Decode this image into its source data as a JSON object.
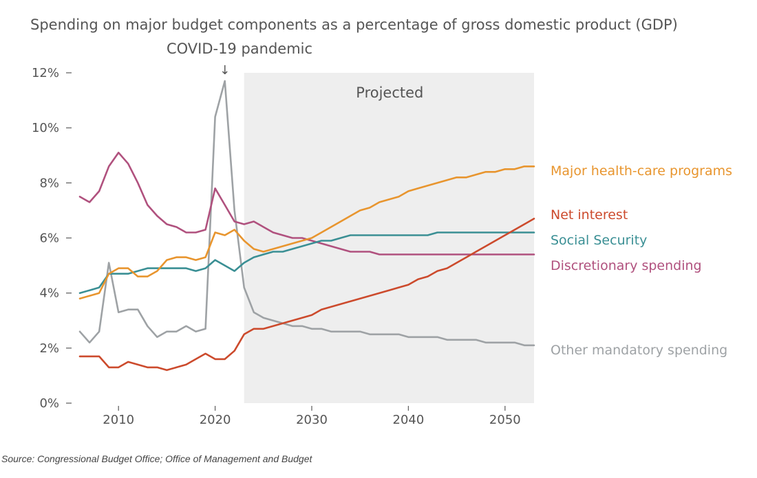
{
  "chart_data": {
    "type": "line",
    "title": "Spending on major budget components as a percentage of gross domestic product (GDP)",
    "xlabel": "",
    "ylabel": "",
    "xlim": [
      2005,
      2054
    ],
    "ylim": [
      0,
      12
    ],
    "x_ticks": [
      2010,
      2020,
      2030,
      2040,
      2050
    ],
    "x_tick_labels": [
      "2010",
      "2020",
      "2030",
      "2040",
      "2050"
    ],
    "y_ticks": [
      0,
      2,
      4,
      6,
      8,
      10,
      12
    ],
    "y_tick_labels": [
      "0%",
      "2%",
      "4%",
      "6%",
      "8%",
      "10%",
      "12%"
    ],
    "projected_region": {
      "label": "Projected",
      "x_start": 2023,
      "x_end": 2053
    },
    "annotation": {
      "text": "COVID-19 pandemic",
      "arrow": "↓",
      "x": 2021
    },
    "series": [
      {
        "name": "Major health-care programs",
        "color": "#e8952e",
        "x": [
          2006,
          2007,
          2008,
          2009,
          2010,
          2011,
          2012,
          2013,
          2014,
          2015,
          2016,
          2017,
          2018,
          2019,
          2020,
          2021,
          2022,
          2023,
          2024,
          2025,
          2026,
          2027,
          2028,
          2029,
          2030,
          2031,
          2032,
          2033,
          2034,
          2035,
          2036,
          2037,
          2038,
          2039,
          2040,
          2041,
          2042,
          2043,
          2044,
          2045,
          2046,
          2047,
          2048,
          2049,
          2050,
          2051,
          2052,
          2053
        ],
        "values": [
          3.8,
          3.9,
          4.0,
          4.7,
          4.9,
          4.9,
          4.6,
          4.6,
          4.8,
          5.2,
          5.3,
          5.3,
          5.2,
          5.3,
          6.2,
          6.1,
          6.3,
          5.9,
          5.6,
          5.5,
          5.6,
          5.7,
          5.8,
          5.9,
          6.0,
          6.2,
          6.4,
          6.6,
          6.8,
          7.0,
          7.1,
          7.3,
          7.4,
          7.5,
          7.7,
          7.8,
          7.9,
          8.0,
          8.1,
          8.2,
          8.2,
          8.3,
          8.4,
          8.4,
          8.5,
          8.5,
          8.6,
          8.6
        ]
      },
      {
        "name": "Net interest",
        "color": "#cc4a2c",
        "x": [
          2006,
          2007,
          2008,
          2009,
          2010,
          2011,
          2012,
          2013,
          2014,
          2015,
          2016,
          2017,
          2018,
          2019,
          2020,
          2021,
          2022,
          2023,
          2024,
          2025,
          2026,
          2027,
          2028,
          2029,
          2030,
          2031,
          2032,
          2033,
          2034,
          2035,
          2036,
          2037,
          2038,
          2039,
          2040,
          2041,
          2042,
          2043,
          2044,
          2045,
          2046,
          2047,
          2048,
          2049,
          2050,
          2051,
          2052,
          2053
        ],
        "values": [
          1.7,
          1.7,
          1.7,
          1.3,
          1.3,
          1.5,
          1.4,
          1.3,
          1.3,
          1.2,
          1.3,
          1.4,
          1.6,
          1.8,
          1.6,
          1.6,
          1.9,
          2.5,
          2.7,
          2.7,
          2.8,
          2.9,
          3.0,
          3.1,
          3.2,
          3.4,
          3.5,
          3.6,
          3.7,
          3.8,
          3.9,
          4.0,
          4.1,
          4.2,
          4.3,
          4.5,
          4.6,
          4.8,
          4.9,
          5.1,
          5.3,
          5.5,
          5.7,
          5.9,
          6.1,
          6.3,
          6.5,
          6.7
        ]
      },
      {
        "name": "Social Security",
        "color": "#3a8f94",
        "x": [
          2006,
          2007,
          2008,
          2009,
          2010,
          2011,
          2012,
          2013,
          2014,
          2015,
          2016,
          2017,
          2018,
          2019,
          2020,
          2021,
          2022,
          2023,
          2024,
          2025,
          2026,
          2027,
          2028,
          2029,
          2030,
          2031,
          2032,
          2033,
          2034,
          2035,
          2036,
          2037,
          2038,
          2039,
          2040,
          2041,
          2042,
          2043,
          2044,
          2045,
          2046,
          2047,
          2048,
          2049,
          2050,
          2051,
          2052,
          2053
        ],
        "values": [
          4.0,
          4.1,
          4.2,
          4.7,
          4.7,
          4.7,
          4.8,
          4.9,
          4.9,
          4.9,
          4.9,
          4.9,
          4.8,
          4.9,
          5.2,
          5.0,
          4.8,
          5.1,
          5.3,
          5.4,
          5.5,
          5.5,
          5.6,
          5.7,
          5.8,
          5.9,
          5.9,
          6.0,
          6.1,
          6.1,
          6.1,
          6.1,
          6.1,
          6.1,
          6.1,
          6.1,
          6.1,
          6.2,
          6.2,
          6.2,
          6.2,
          6.2,
          6.2,
          6.2,
          6.2,
          6.2,
          6.2,
          6.2
        ]
      },
      {
        "name": "Discretionary spending",
        "color": "#b0517e",
        "x": [
          2006,
          2007,
          2008,
          2009,
          2010,
          2011,
          2012,
          2013,
          2014,
          2015,
          2016,
          2017,
          2018,
          2019,
          2020,
          2021,
          2022,
          2023,
          2024,
          2025,
          2026,
          2027,
          2028,
          2029,
          2030,
          2031,
          2032,
          2033,
          2034,
          2035,
          2036,
          2037,
          2038,
          2039,
          2040,
          2041,
          2042,
          2043,
          2044,
          2045,
          2046,
          2047,
          2048,
          2049,
          2050,
          2051,
          2052,
          2053
        ],
        "values": [
          7.5,
          7.3,
          7.7,
          8.6,
          9.1,
          8.7,
          8.0,
          7.2,
          6.8,
          6.5,
          6.4,
          6.2,
          6.2,
          6.3,
          7.8,
          7.2,
          6.6,
          6.5,
          6.6,
          6.4,
          6.2,
          6.1,
          6.0,
          6.0,
          5.9,
          5.8,
          5.7,
          5.6,
          5.5,
          5.5,
          5.5,
          5.4,
          5.4,
          5.4,
          5.4,
          5.4,
          5.4,
          5.4,
          5.4,
          5.4,
          5.4,
          5.4,
          5.4,
          5.4,
          5.4,
          5.4,
          5.4,
          5.4
        ]
      },
      {
        "name": "Other mandatory spending",
        "color": "#9ea2a5",
        "x": [
          2006,
          2007,
          2008,
          2009,
          2010,
          2011,
          2012,
          2013,
          2014,
          2015,
          2016,
          2017,
          2018,
          2019,
          2020,
          2021,
          2022,
          2023,
          2024,
          2025,
          2026,
          2027,
          2028,
          2029,
          2030,
          2031,
          2032,
          2033,
          2034,
          2035,
          2036,
          2037,
          2038,
          2039,
          2040,
          2041,
          2042,
          2043,
          2044,
          2045,
          2046,
          2047,
          2048,
          2049,
          2050,
          2051,
          2052,
          2053
        ],
        "values": [
          2.6,
          2.2,
          2.6,
          5.1,
          3.3,
          3.4,
          3.4,
          2.8,
          2.4,
          2.6,
          2.6,
          2.8,
          2.6,
          2.7,
          10.4,
          11.7,
          7.0,
          4.2,
          3.3,
          3.1,
          3.0,
          2.9,
          2.8,
          2.8,
          2.7,
          2.7,
          2.6,
          2.6,
          2.6,
          2.6,
          2.5,
          2.5,
          2.5,
          2.5,
          2.4,
          2.4,
          2.4,
          2.4,
          2.3,
          2.3,
          2.3,
          2.3,
          2.2,
          2.2,
          2.2,
          2.2,
          2.1,
          2.1
        ]
      }
    ]
  },
  "source": "Source: Congressional Budget Office; Office of Management and Budget"
}
